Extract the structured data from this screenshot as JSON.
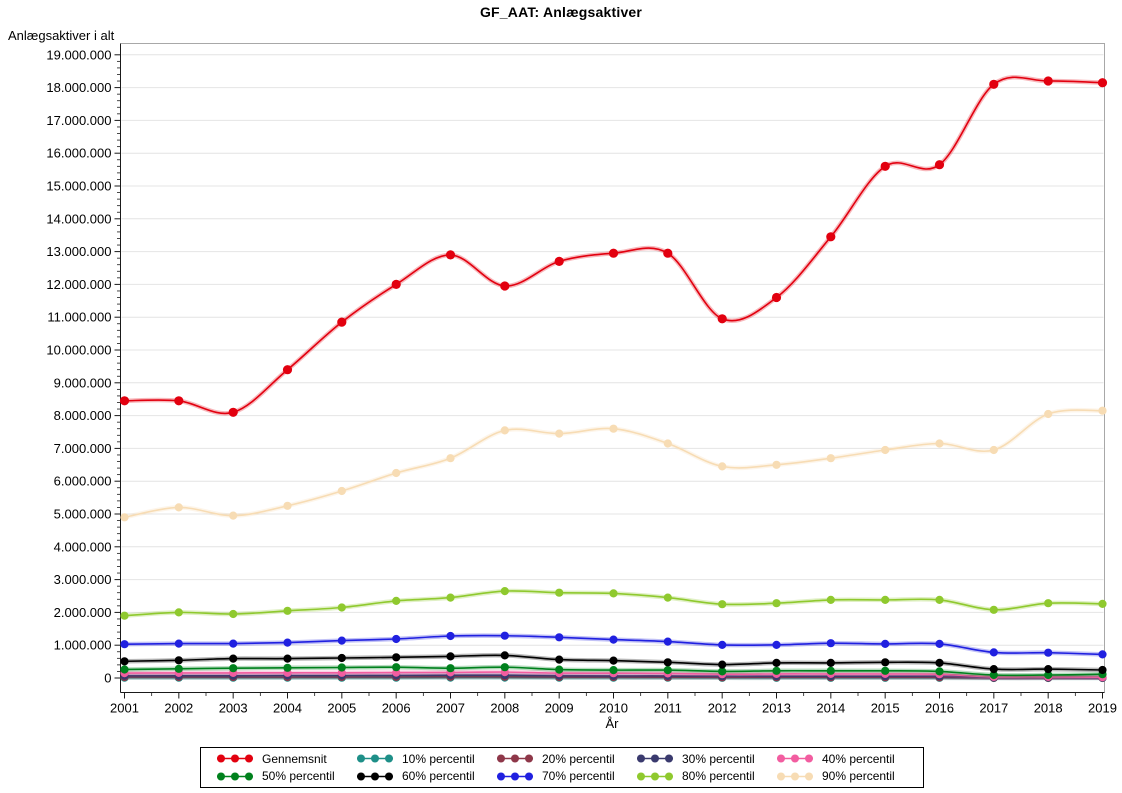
{
  "chart_data": {
    "type": "line",
    "title": "GF_AAT: Anlægsaktiver",
    "xlabel": "År",
    "ylabel": "Anlægsaktiver i alt",
    "grid": "horizontal",
    "legend_position": "bottom",
    "ylim": [
      0,
      19000000
    ],
    "ytick_step": 1000000,
    "ytick_labels": [
      "0",
      "1.000.000",
      "2.000.000",
      "3.000.000",
      "4.000.000",
      "5.000.000",
      "6.000.000",
      "7.000.000",
      "8.000.000",
      "9.000.000",
      "10.000.000",
      "11.000.000",
      "12.000.000",
      "13.000.000",
      "14.000.000",
      "15.000.000",
      "16.000.000",
      "17.000.000",
      "18.000.000",
      "19.000.000"
    ],
    "x": [
      2001,
      2002,
      2003,
      2004,
      2005,
      2006,
      2007,
      2008,
      2009,
      2010,
      2011,
      2012,
      2013,
      2014,
      2015,
      2016,
      2017,
      2018,
      2019
    ],
    "xtick_labels": [
      "2001",
      "2002",
      "2003",
      "2004",
      "2005",
      "2006",
      "2007",
      "2008",
      "2009",
      "2010",
      "2011",
      "2012",
      "2013",
      "2014",
      "2015",
      "2016",
      "2017",
      "2018",
      "2019"
    ],
    "series": [
      {
        "name": "Gennemsnit",
        "color": "#E2000F",
        "values": [
          8450000,
          8450000,
          8100000,
          9400000,
          10850000,
          12000000,
          12900000,
          11950000,
          12700000,
          12950000,
          12950000,
          10950000,
          11600000,
          13450000,
          15600000,
          15650000,
          18100000,
          18200000,
          18150000
        ]
      },
      {
        "name": "10% percentil",
        "color": "#1E8F88",
        "values": [
          8000,
          8000,
          8000,
          8000,
          10000,
          10000,
          12000,
          12000,
          8000,
          8000,
          8000,
          5000,
          5000,
          5000,
          5000,
          5000,
          0,
          0,
          0
        ]
      },
      {
        "name": "20% percentil",
        "color": "#8E3749",
        "values": [
          30000,
          30000,
          30000,
          30000,
          35000,
          35000,
          40000,
          40000,
          30000,
          30000,
          25000,
          20000,
          25000,
          25000,
          25000,
          20000,
          5000,
          5000,
          5000
        ]
      },
      {
        "name": "30% percentil",
        "color": "#3A3A6E",
        "values": [
          70000,
          70000,
          70000,
          75000,
          75000,
          80000,
          85000,
          85000,
          70000,
          65000,
          65000,
          55000,
          55000,
          55000,
          55000,
          55000,
          15000,
          15000,
          10000
        ]
      },
      {
        "name": "40% percentil",
        "color": "#F25DA0",
        "values": [
          150000,
          155000,
          155000,
          160000,
          160000,
          165000,
          170000,
          180000,
          150000,
          145000,
          140000,
          115000,
          125000,
          125000,
          125000,
          115000,
          35000,
          35000,
          25000
        ]
      },
      {
        "name": "50% percentil",
        "color": "#00811D",
        "values": [
          260000,
          280000,
          300000,
          310000,
          320000,
          330000,
          300000,
          330000,
          255000,
          240000,
          240000,
          200000,
          220000,
          220000,
          220000,
          200000,
          90000,
          90000,
          115000
        ]
      },
      {
        "name": "60% percentil",
        "color": "#000000",
        "values": [
          510000,
          540000,
          590000,
          590000,
          610000,
          630000,
          660000,
          690000,
          560000,
          530000,
          480000,
          410000,
          460000,
          460000,
          480000,
          460000,
          270000,
          270000,
          245000
        ]
      },
      {
        "name": "70% percentil",
        "color": "#2020E0",
        "values": [
          1030000,
          1050000,
          1050000,
          1080000,
          1140000,
          1190000,
          1280000,
          1290000,
          1240000,
          1170000,
          1110000,
          1010000,
          1010000,
          1060000,
          1040000,
          1040000,
          780000,
          770000,
          720000
        ]
      },
      {
        "name": "80% percentil",
        "color": "#8FC92E",
        "values": [
          1900000,
          2000000,
          1950000,
          2050000,
          2150000,
          2350000,
          2450000,
          2650000,
          2600000,
          2580000,
          2450000,
          2250000,
          2280000,
          2380000,
          2380000,
          2380000,
          2080000,
          2280000,
          2260000
        ]
      },
      {
        "name": "90% percentil",
        "color": "#F7DCB4",
        "values": [
          4900000,
          5200000,
          4950000,
          5250000,
          5700000,
          6250000,
          6700000,
          7550000,
          7450000,
          7600000,
          7150000,
          6450000,
          6500000,
          6700000,
          6950000,
          7150000,
          6950000,
          8050000,
          8150000
        ]
      }
    ],
    "draw_order": [
      1,
      2,
      3,
      4,
      5,
      6,
      7,
      8,
      9,
      0
    ]
  }
}
